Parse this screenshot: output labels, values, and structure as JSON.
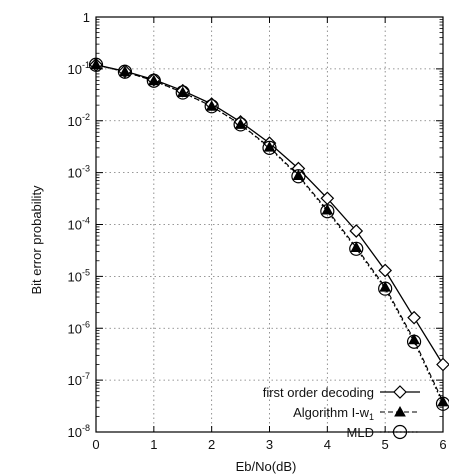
{
  "chart_data": {
    "type": "line",
    "title": "",
    "xlabel": "Eb/No(dB)",
    "ylabel": "Bit error probability",
    "xlim": [
      0,
      6
    ],
    "ylim": [
      1e-08,
      1
    ],
    "yscale": "log",
    "grid": true,
    "legend_position": "bottom-right",
    "x_ticks": [
      "0",
      "1",
      "2",
      "3",
      "4",
      "5",
      "6"
    ],
    "y_ticks": [
      {
        "base": "1",
        "exp": ""
      },
      {
        "base": "10",
        "exp": "-1"
      },
      {
        "base": "10",
        "exp": "-2"
      },
      {
        "base": "10",
        "exp": "-3"
      },
      {
        "base": "10",
        "exp": "-4"
      },
      {
        "base": "10",
        "exp": "-5"
      },
      {
        "base": "10",
        "exp": "-6"
      },
      {
        "base": "10",
        "exp": "-7"
      },
      {
        "base": "10",
        "exp": "-8"
      }
    ],
    "x": [
      0,
      0.5,
      1,
      1.5,
      2,
      2.5,
      3,
      3.5,
      4,
      4.5,
      5,
      5.5,
      6
    ],
    "series": [
      {
        "name": "first order decoding",
        "marker": "diamond",
        "line": "solid",
        "values": [
          0.12,
          0.09,
          0.062,
          0.038,
          0.021,
          0.0095,
          0.0037,
          0.0012,
          0.00032,
          7.5e-05,
          1.3e-05,
          1.6e-06,
          2e-07
        ]
      },
      {
        "name": "Algorithm I-w₁",
        "marker": "triangle",
        "line": "dashed",
        "values": [
          0.12,
          0.088,
          0.059,
          0.035,
          0.019,
          0.0085,
          0.0031,
          0.00088,
          0.00019,
          3.6e-05,
          6.2e-06,
          6e-07,
          3.8e-08
        ]
      },
      {
        "name": "MLD",
        "marker": "circle",
        "line": "dotted",
        "values": [
          0.12,
          0.088,
          0.059,
          0.035,
          0.019,
          0.0085,
          0.003,
          0.00085,
          0.00018,
          3.4e-05,
          5.8e-06,
          5.5e-07,
          3.5e-08
        ]
      }
    ],
    "legend_labels": {
      "s0": "first order decoding",
      "s1_main": "Algorithm I-w",
      "s1_sub": "1",
      "s2": "MLD"
    }
  }
}
